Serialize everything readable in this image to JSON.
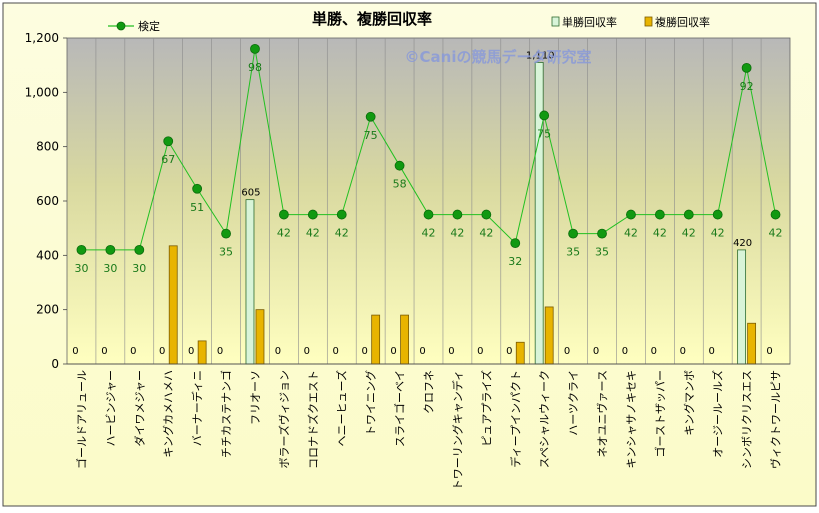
{
  "chart_data": {
    "type": "bar",
    "title": "単勝、複勝回収率",
    "watermark": "©Caniの競馬データ研究室",
    "categories": [
      "ゴールドアリュール",
      "ハービンジャー",
      "ダイワメジャー",
      "キングカメハメハ",
      "バーナーディニ",
      "チチカステナンゴ",
      "フリオーソ",
      "ボラーズヴィジョン",
      "コロナドズクエスト",
      "ヘニーヒューズ",
      "トワイニング",
      "スライゴーベイ",
      "クロフネ",
      "トワーリングキャンディ",
      "ピュアプライズ",
      "ディープインパクト",
      "スペシャルウィーク",
      "ハーツクライ",
      "ネオユニヴァース",
      "キンシャサノキセキ",
      "ゴーストザッパー",
      "キングマンボ",
      "オージールールズ",
      "シンボリクリスエス",
      "ヴィクトワールピサ"
    ],
    "series": [
      {
        "name": "単勝回収率",
        "kind": "bar",
        "color": "#d8f4d8",
        "stroke": "#2e6b2e",
        "values": [
          0,
          0,
          0,
          0,
          0,
          0,
          605,
          0,
          0,
          0,
          0,
          0,
          0,
          0,
          0,
          0,
          1110,
          0,
          0,
          0,
          0,
          0,
          0,
          420,
          0
        ],
        "labels": [
          "0",
          "0",
          "0",
          "0",
          "0",
          "0",
          "605",
          "0",
          "0",
          "0",
          "0",
          "0",
          "0",
          "0",
          "0",
          "0",
          "1,110",
          "0",
          "0",
          "0",
          "0",
          "0",
          "0",
          "420",
          "0"
        ]
      },
      {
        "name": "複勝回収率",
        "kind": "bar",
        "color": "#e8b400",
        "stroke": "#7a5a00",
        "values": [
          0,
          0,
          0,
          435,
          85,
          0,
          200,
          0,
          0,
          0,
          180,
          180,
          0,
          0,
          0,
          80,
          210,
          0,
          0,
          0,
          0,
          0,
          0,
          150,
          0
        ]
      },
      {
        "name": "検定",
        "kind": "line",
        "color": "#22c022",
        "marker": "#119911",
        "values": [
          420,
          420,
          420,
          820,
          645,
          480,
          1160,
          550,
          550,
          550,
          910,
          730,
          550,
          550,
          550,
          445,
          915,
          480,
          480,
          550,
          550,
          550,
          550,
          1090,
          550
        ],
        "labels": [
          "30",
          "30",
          "30",
          "67",
          "51",
          "35",
          "98",
          "42",
          "42",
          "42",
          "75",
          "58",
          "42",
          "42",
          "42",
          "32",
          "75",
          "35",
          "35",
          "42",
          "42",
          "42",
          "42",
          "92",
          "42"
        ]
      }
    ],
    "ylim": [
      0,
      1200
    ],
    "yticks": [
      0,
      200,
      400,
      600,
      800,
      1000,
      1200
    ],
    "ytick_labels": [
      "0",
      "200",
      "400",
      "600",
      "800",
      "1,000",
      "1,200"
    ],
    "grid": "vertical",
    "legend": "top"
  }
}
